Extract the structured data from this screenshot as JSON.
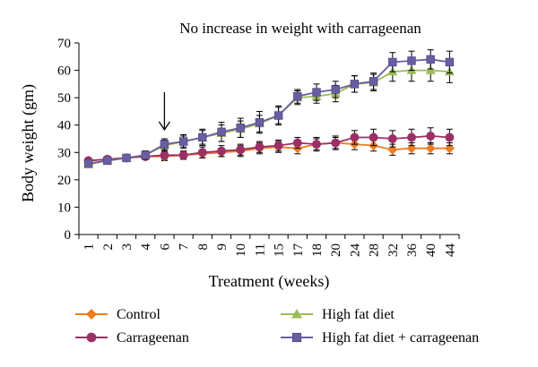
{
  "chart_data": {
    "type": "line",
    "title": "No increase in weight with carrageenan",
    "xlabel": "Treatment (weeks)",
    "ylabel": "Body weight (gm)",
    "categories": [
      "1",
      "2",
      "3",
      "4",
      "6",
      "7",
      "8",
      "9",
      "10",
      "11",
      "15",
      "17",
      "18",
      "20",
      "24",
      "28",
      "32",
      "36",
      "40",
      "44"
    ],
    "ylim": [
      0,
      70
    ],
    "yticks": [
      0,
      10,
      20,
      30,
      40,
      50,
      60,
      70
    ],
    "grid": false,
    "legend_position": "bottom",
    "arrow_at_category": "6",
    "series": [
      {
        "name": "Control",
        "color": "#ED7D22",
        "marker": "diamond",
        "values": [
          27,
          27.5,
          28,
          28.5,
          28.5,
          29,
          29.5,
          30,
          30.5,
          31.5,
          32,
          31.5,
          33,
          33.5,
          33,
          32.5,
          31,
          31.5,
          31.5,
          31.5
        ],
        "errors": [
          1,
          1,
          1,
          1,
          1.5,
          1.5,
          1.5,
          1.5,
          2,
          2,
          2,
          2,
          2,
          2,
          2,
          2,
          2,
          2,
          2,
          2
        ]
      },
      {
        "name": "Carrageenan",
        "color": "#9C3066",
        "marker": "circle",
        "values": [
          27,
          27.5,
          28,
          28.5,
          29,
          29,
          30,
          30.5,
          31,
          32,
          32.5,
          33.5,
          33,
          33.5,
          35.5,
          35.5,
          35,
          35.5,
          36,
          35.5
        ],
        "errors": [
          1,
          1,
          1,
          1,
          1.5,
          1.5,
          2,
          2,
          2,
          2,
          2,
          2,
          2.5,
          2.5,
          2.5,
          3,
          3,
          3,
          3,
          3
        ]
      },
      {
        "name": "High fat diet",
        "color": "#9BBB59",
        "marker": "triangle",
        "values": [
          25.5,
          27,
          28,
          29,
          32.5,
          34,
          35.5,
          37,
          38.5,
          40.5,
          43.5,
          50,
          50.5,
          51.5,
          55,
          55.5,
          59.5,
          60,
          60,
          59.5
        ],
        "errors": [
          1,
          1,
          1,
          1.5,
          2,
          2,
          2.5,
          3,
          3,
          3,
          3,
          2.5,
          2.5,
          3,
          3,
          3,
          3.5,
          4,
          4,
          4
        ]
      },
      {
        "name": "High fat diet + carrageenan",
        "color": "#6A5DA1",
        "marker": "square",
        "values": [
          26,
          27,
          28,
          29,
          33,
          34,
          35.5,
          37.5,
          39,
          41,
          43.5,
          50.5,
          52,
          53,
          55,
          56,
          63,
          63.5,
          64,
          63
        ],
        "errors": [
          1,
          1,
          1,
          1.5,
          2,
          2.5,
          3,
          3.5,
          3.5,
          4,
          3.5,
          2.5,
          3,
          3,
          3,
          3,
          3.5,
          3.5,
          3.5,
          4
        ]
      }
    ]
  }
}
